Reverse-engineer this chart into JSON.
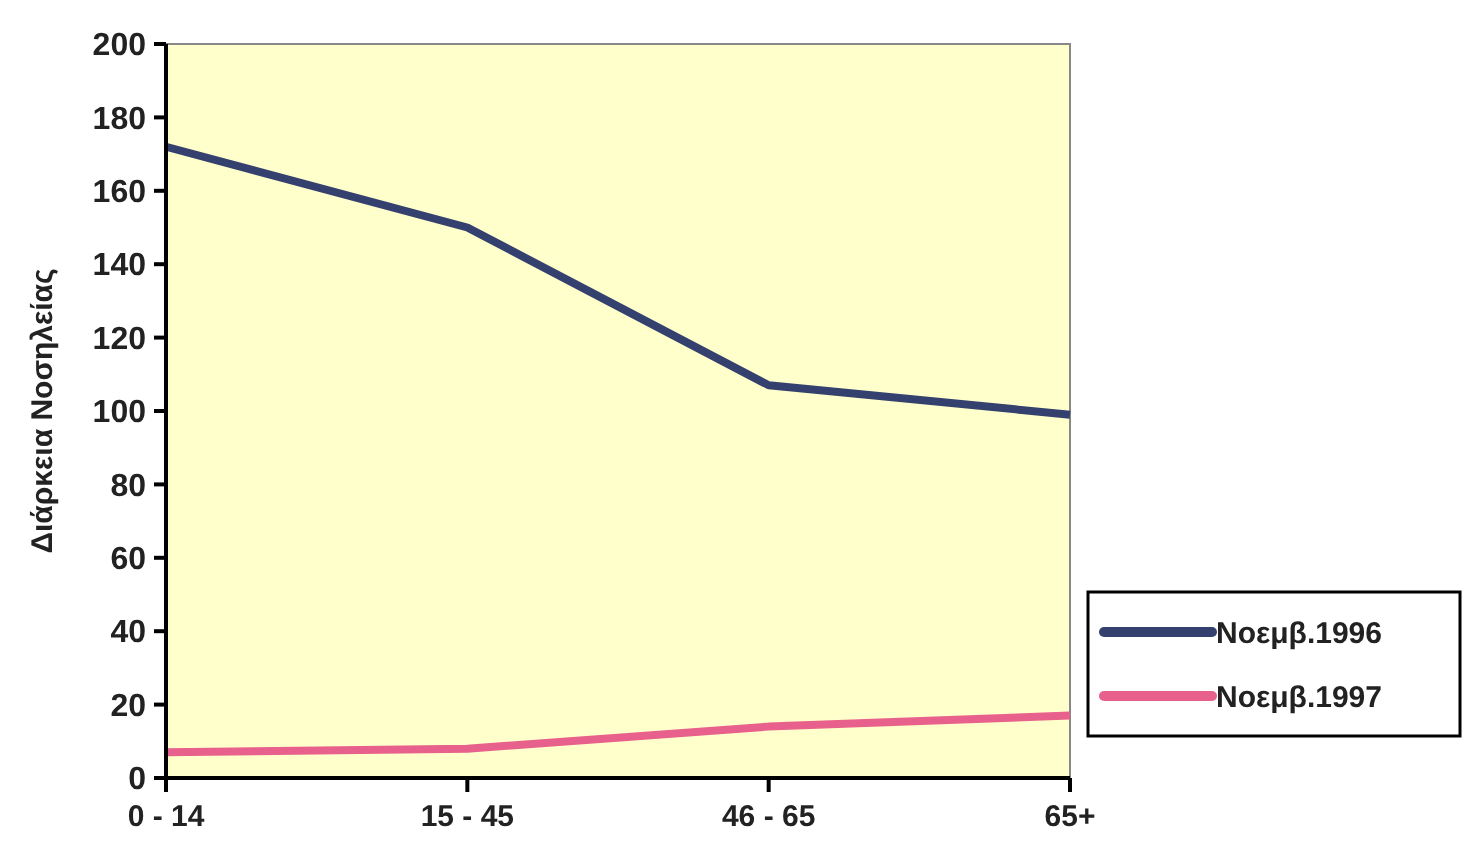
{
  "chart_data": {
    "type": "line",
    "ylabel": "Διάρκεια Νοσηλείας",
    "categories": [
      "0 - 14",
      "15 - 45",
      "46 - 65",
      "65+"
    ],
    "series": [
      {
        "name": "Νοεμβ.1996",
        "color": "#34406e",
        "values": [
          172,
          150,
          107,
          99
        ]
      },
      {
        "name": "Νοεμβ.1997",
        "color": "#e8608c",
        "values": [
          7,
          8,
          14,
          17
        ]
      }
    ],
    "ylim": [
      0,
      200
    ],
    "yticks": [
      0,
      20,
      40,
      60,
      80,
      100,
      120,
      140,
      160,
      180,
      200
    ],
    "grid": false,
    "legend": "right",
    "marker": "none",
    "line_style": "solid"
  }
}
